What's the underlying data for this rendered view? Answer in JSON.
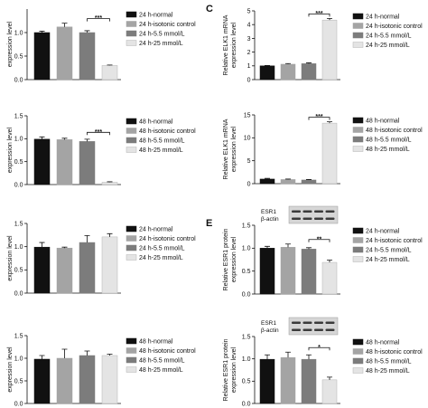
{
  "style": {
    "bar_colors": [
      "#111111",
      "#a4a4a4",
      "#7c7c7c",
      "#e4e4e4"
    ],
    "light_bar_stroke": "#b5b5b5",
    "axis_color": "#111111",
    "blot_background": "#d6d6d6",
    "blot_border": "#9a9a9a",
    "blot_band": "#3b3b3b"
  },
  "chart_data": [
    {
      "type": "bar",
      "ylabel": [
        "expression level"
      ],
      "ylim": [
        0,
        1.5
      ],
      "yticks": [
        "0.0",
        "0.5",
        "1.0"
      ],
      "legend": [
        "24 h-normal",
        "24 h-isotonic control",
        "24 h-5.5 mmol/L",
        "24 h-25 mmol/L"
      ],
      "legend_position": "right",
      "values": [
        1.0,
        1.12,
        1.0,
        0.3
      ],
      "errors": [
        0.03,
        0.08,
        0.04,
        0.01
      ],
      "significance": [
        {
          "between": [
            2,
            3
          ],
          "label": "***"
        }
      ]
    },
    {
      "type": "bar",
      "ylabel": [
        "expression level"
      ],
      "ylim": [
        0,
        1.5
      ],
      "yticks": [
        "0.0",
        "0.5",
        "1.0",
        "1.5"
      ],
      "legend": [
        "48 h-normal",
        "48 h-isotonic control",
        "48 h-5.5 mmol/L",
        "48 h-25 mmol/L"
      ],
      "legend_position": "right",
      "values": [
        0.99,
        0.98,
        0.94,
        0.05
      ],
      "errors": [
        0.05,
        0.03,
        0.05,
        0.01
      ],
      "significance": [
        {
          "between": [
            2,
            3
          ],
          "label": "***"
        }
      ]
    },
    {
      "type": "bar",
      "ylabel": [
        "expression level"
      ],
      "ylim": [
        0,
        1.5
      ],
      "yticks": [
        "0.0",
        "0.5",
        "1.0",
        "1.5"
      ],
      "legend": [
        "24 h-normal",
        "24 h-isotonic control",
        "24 h-5.5 mmol/L",
        "24 h-25 mmol/L"
      ],
      "legend_position": "right",
      "values": [
        0.99,
        0.97,
        1.09,
        1.21
      ],
      "errors": [
        0.1,
        0.02,
        0.15,
        0.07
      ]
    },
    {
      "type": "bar",
      "ylabel": [
        "expression level"
      ],
      "ylim": [
        0,
        1.5
      ],
      "yticks": [
        "0.0",
        "0.5",
        "1.0",
        "1.5"
      ],
      "legend": [
        "48 h-normal",
        "48 h-isotonic control",
        "48 h-5.5 mmol/L",
        "48 h-25 mmol/L"
      ],
      "legend_position": "right",
      "values": [
        0.98,
        1.0,
        1.06,
        1.06
      ],
      "errors": [
        0.08,
        0.2,
        0.1,
        0.03
      ]
    },
    {
      "type": "bar",
      "panel_label": "C",
      "ylabel": [
        "Relative ELK1 mRNA",
        "expression level"
      ],
      "ylim": [
        0,
        5
      ],
      "yticks": [
        "0",
        "1",
        "2",
        "3",
        "4",
        "5"
      ],
      "legend": [
        "24 h-normal",
        "24 h-isotonic control",
        "24 h-5.5 mmol/L",
        "24 h-25 mmol/L"
      ],
      "legend_position": "right",
      "values": [
        1.0,
        1.12,
        1.16,
        4.33
      ],
      "errors": [
        0.03,
        0.05,
        0.06,
        0.12
      ],
      "significance": [
        {
          "between": [
            2,
            3
          ],
          "label": "***"
        }
      ]
    },
    {
      "type": "bar",
      "ylabel": [
        "Relative ELK1 mRNA",
        "expression level"
      ],
      "ylim": [
        0,
        15
      ],
      "yticks": [
        "0",
        "5",
        "10",
        "15"
      ],
      "legend": [
        "48 h-normal",
        "48 h-isotonic control",
        "48 h-5.5 mmol/L",
        "48 h-25 mmol/L"
      ],
      "legend_position": "right",
      "values": [
        1.0,
        0.9,
        0.8,
        13.2
      ],
      "errors": [
        0.15,
        0.1,
        0.1,
        0.3
      ],
      "significance": [
        {
          "between": [
            2,
            3
          ],
          "label": "***"
        }
      ]
    },
    {
      "type": "bar",
      "panel_label": "E",
      "ylabel": [
        "Relative ESR1 protein",
        "expression level"
      ],
      "ylim": [
        0,
        1.5
      ],
      "yticks": [
        "0.0",
        "0.5",
        "1.0",
        "1.5"
      ],
      "legend": [
        "24 h-normal",
        "24 h-isotonic control",
        "24 h-5.5 mmol/L",
        "24 h-25 mmol/L"
      ],
      "legend_position": "right",
      "values": [
        1.0,
        1.02,
        0.98,
        0.69
      ],
      "errors": [
        0.04,
        0.07,
        0.03,
        0.05
      ],
      "significance": [
        {
          "between": [
            2,
            3
          ],
          "label": "**"
        }
      ],
      "blot": {
        "labels": [
          "ESR1",
          "β-actin"
        ]
      }
    },
    {
      "type": "bar",
      "ylabel": [
        "Relative ESR1 protein",
        "expression level"
      ],
      "ylim": [
        0,
        1.5
      ],
      "yticks": [
        "0.0",
        "0.5",
        "1.0",
        "1.5"
      ],
      "legend": [
        "48 h-normal",
        "48 h-isotonic control",
        "48 h-5.5 mmol/L",
        "48 h-25 mmol/L"
      ],
      "legend_position": "right",
      "values": [
        0.99,
        1.03,
        0.99,
        0.53
      ],
      "errors": [
        0.1,
        0.12,
        0.1,
        0.06
      ],
      "significance": [
        {
          "between": [
            2,
            3
          ],
          "label": "*"
        }
      ],
      "blot": {
        "labels": [
          "ESR1",
          "β-actin"
        ]
      }
    }
  ]
}
